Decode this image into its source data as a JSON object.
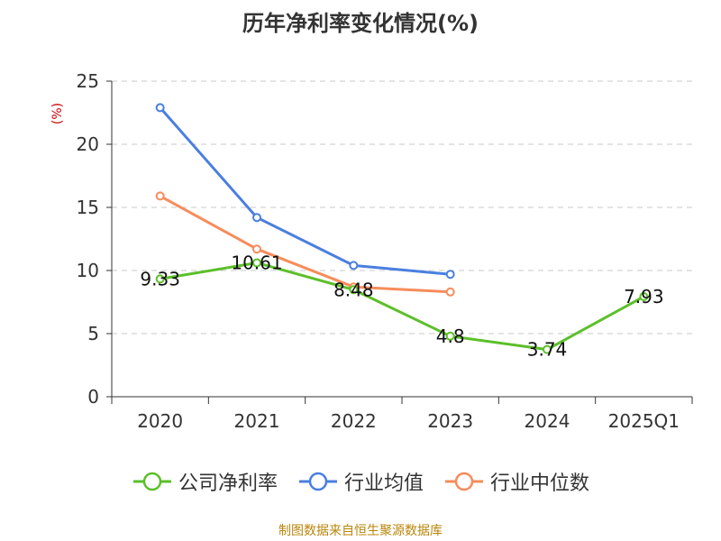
{
  "title": "历年净利率变化情况(%)",
  "source": "制图数据来自恒生聚源数据库",
  "chart_data": {
    "type": "line",
    "title": "历年净利率变化情况(%)",
    "ylabel": "(%)",
    "xlabel": "",
    "ylim": [
      0,
      25
    ],
    "yticks": [
      "0",
      "5",
      "10",
      "15",
      "20",
      "25"
    ],
    "categories": [
      "2020",
      "2021",
      "2022",
      "2023",
      "2024",
      "2025Q1"
    ],
    "legend_position": "bottom",
    "series": [
      {
        "name": "公司净利率",
        "color": "#5cbf2a",
        "values": [
          9.33,
          10.61,
          8.48,
          4.8,
          3.74,
          7.93
        ],
        "labels": [
          "9.33",
          "10.61",
          "8.48",
          "4.8",
          "3.74",
          "7.93"
        ]
      },
      {
        "name": "行业均值",
        "color": "#4a7fe0",
        "values": [
          22.9,
          14.2,
          10.4,
          9.7,
          null,
          null
        ]
      },
      {
        "name": "行业中位数",
        "color": "#f78c5a",
        "values": [
          15.9,
          11.7,
          8.7,
          8.3,
          null,
          null
        ]
      }
    ]
  }
}
